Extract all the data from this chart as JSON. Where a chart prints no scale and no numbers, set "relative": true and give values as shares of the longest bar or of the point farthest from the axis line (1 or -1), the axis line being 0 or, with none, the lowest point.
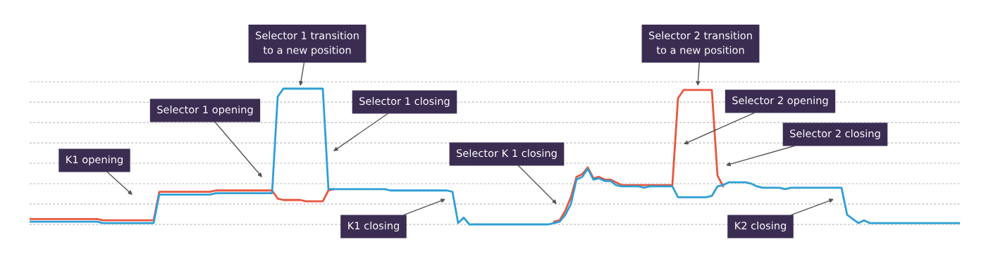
{
  "chart_data": {
    "type": "line",
    "relative": true,
    "grid": "y",
    "categories": [
      null,
      null,
      null,
      null,
      null,
      null,
      null,
      null,
      null,
      null,
      null,
      null,
      null,
      null,
      null,
      null,
      null,
      null,
      null,
      null,
      null,
      null,
      null,
      null,
      null,
      null,
      null,
      null,
      null,
      null,
      null,
      null,
      null,
      null,
      null,
      null,
      null,
      null,
      null,
      null,
      null,
      null,
      null,
      null,
      null,
      null,
      null,
      null,
      null,
      null,
      null,
      null,
      null,
      null,
      null,
      null,
      null,
      null,
      null,
      null,
      null,
      null,
      null,
      null,
      null,
      null,
      null,
      null,
      null,
      null,
      null,
      null,
      null,
      null,
      null,
      null,
      null,
      null,
      null,
      null,
      null,
      null,
      null,
      null,
      null,
      null,
      null,
      null,
      null,
      null,
      null,
      null,
      null,
      null,
      null,
      null,
      null,
      null,
      null,
      null,
      null,
      null,
      null,
      null,
      null,
      null,
      null,
      null,
      null,
      null,
      null,
      null,
      null,
      null,
      null,
      null,
      null,
      null,
      null,
      null,
      null,
      null,
      null,
      null,
      null,
      null,
      null,
      null,
      null,
      null,
      null,
      null,
      null,
      null,
      null,
      null,
      null,
      null,
      null,
      null,
      null,
      null,
      null,
      null,
      null,
      null,
      null,
      null,
      null,
      null,
      null,
      null,
      null,
      null,
      null,
      null,
      null,
      null,
      null,
      null,
      null,
      null,
      null,
      null,
      null,
      null
    ],
    "series": [
      {
        "color": "#e8553e",
        "values": [
          0.04,
          0.04,
          0.04,
          0.04,
          0.04,
          0.04,
          0.04,
          0.04,
          0.04,
          0.04,
          0.04,
          0.04,
          0.04,
          0.03,
          0.03,
          0.03,
          0.03,
          0.03,
          0.03,
          0.03,
          0.03,
          0.03,
          0.03,
          0.24,
          0.24,
          0.24,
          0.24,
          0.24,
          0.24,
          0.24,
          0.24,
          0.24,
          0.24,
          0.25,
          0.25,
          0.25,
          0.25,
          0.25,
          0.25,
          0.25,
          0.25,
          0.25,
          0.25,
          0.25,
          0.19,
          0.18,
          0.18,
          0.18,
          0.18,
          0.17,
          0.17,
          0.17,
          0.17,
          0.25,
          0.26,
          null,
          null,
          null,
          null,
          null,
          null,
          null,
          null,
          null,
          null,
          null,
          null,
          null,
          null,
          null,
          null,
          null,
          null,
          null,
          null,
          null,
          null,
          null,
          null,
          null,
          null,
          null,
          null,
          null,
          null,
          null,
          null,
          null,
          null,
          null,
          null,
          null,
          null,
          0.02,
          0.03,
          0.1,
          0.2,
          0.35,
          0.37,
          0.42,
          0.34,
          0.35,
          0.33,
          0.33,
          0.31,
          0.29,
          0.29,
          0.29,
          0.29,
          0.29,
          0.29,
          0.29,
          0.29,
          0.29,
          0.29,
          0.93,
          0.99,
          0.99,
          0.99,
          0.99,
          0.99,
          0.99,
          0.36,
          0.28,
          null,
          null,
          null,
          null,
          null,
          null,
          null,
          null,
          null,
          null,
          null,
          null,
          null,
          null,
          null,
          null,
          null,
          null,
          null,
          null,
          null,
          null,
          null,
          null,
          null,
          null,
          null,
          null,
          null,
          null,
          null,
          null,
          null,
          null,
          null,
          null,
          null,
          null,
          null,
          null,
          null,
          null
        ]
      },
      {
        "color": "#2e9fd6",
        "values": [
          0.02,
          0.02,
          0.02,
          0.02,
          0.02,
          0.02,
          0.02,
          0.02,
          0.02,
          0.02,
          0.02,
          0.02,
          0.02,
          0.01,
          0.01,
          0.01,
          0.01,
          0.01,
          0.01,
          0.01,
          0.01,
          0.01,
          0.01,
          0.22,
          0.22,
          0.22,
          0.22,
          0.22,
          0.22,
          0.22,
          0.22,
          0.22,
          0.22,
          0.23,
          0.23,
          0.23,
          0.23,
          0.23,
          0.23,
          0.23,
          0.23,
          0.23,
          0.23,
          0.23,
          0.94,
          1.0,
          1.0,
          1.0,
          1.0,
          1.0,
          1.0,
          1.0,
          1.0,
          0.26,
          0.26,
          0.26,
          0.26,
          0.26,
          0.26,
          0.26,
          0.26,
          0.26,
          0.26,
          0.26,
          0.25,
          0.25,
          0.25,
          0.25,
          0.25,
          0.25,
          0.25,
          0.25,
          0.25,
          0.25,
          0.25,
          0.24,
          0.01,
          0.05,
          0,
          0,
          0,
          0,
          0,
          0,
          0,
          0,
          0,
          0,
          0,
          0,
          0,
          0,
          0,
          0.01,
          0.02,
          0.07,
          0.15,
          0.33,
          0.35,
          0.41,
          0.33,
          0.34,
          0.32,
          0.32,
          0.29,
          0.28,
          0.28,
          0.28,
          0.28,
          0.27,
          0.28,
          0.28,
          0.28,
          0.28,
          0.28,
          0.2,
          0.2,
          0.2,
          0.2,
          0.2,
          0.2,
          0.21,
          0.28,
          0.29,
          0.31,
          0.31,
          0.31,
          0.31,
          0.3,
          0.28,
          0.27,
          0.27,
          0.27,
          0.27,
          0.26,
          0.27,
          0.27,
          0.27,
          0.27,
          0.27,
          0.27,
          0.27,
          0.27,
          0.27,
          0.27,
          0.07,
          0.04,
          0.01,
          0.03,
          0.01,
          0.01,
          0.01,
          0.01,
          0.01,
          0.01,
          0.01,
          0.01,
          0.01,
          0.01,
          0.01,
          0.01,
          0.01,
          0.01,
          0.01,
          0.01,
          0.01
        ]
      }
    ],
    "annotations": [
      "Selector 1 transition\nto a new position",
      "Selector 1 opening",
      "Selector 1 closing",
      "K1 opening",
      "Selector K 1 closing",
      "K1 closing",
      "Selector 2 transition\nto a new position",
      "Selector 2 opening",
      "Selector 2 closing",
      "K2 closing"
    ]
  }
}
